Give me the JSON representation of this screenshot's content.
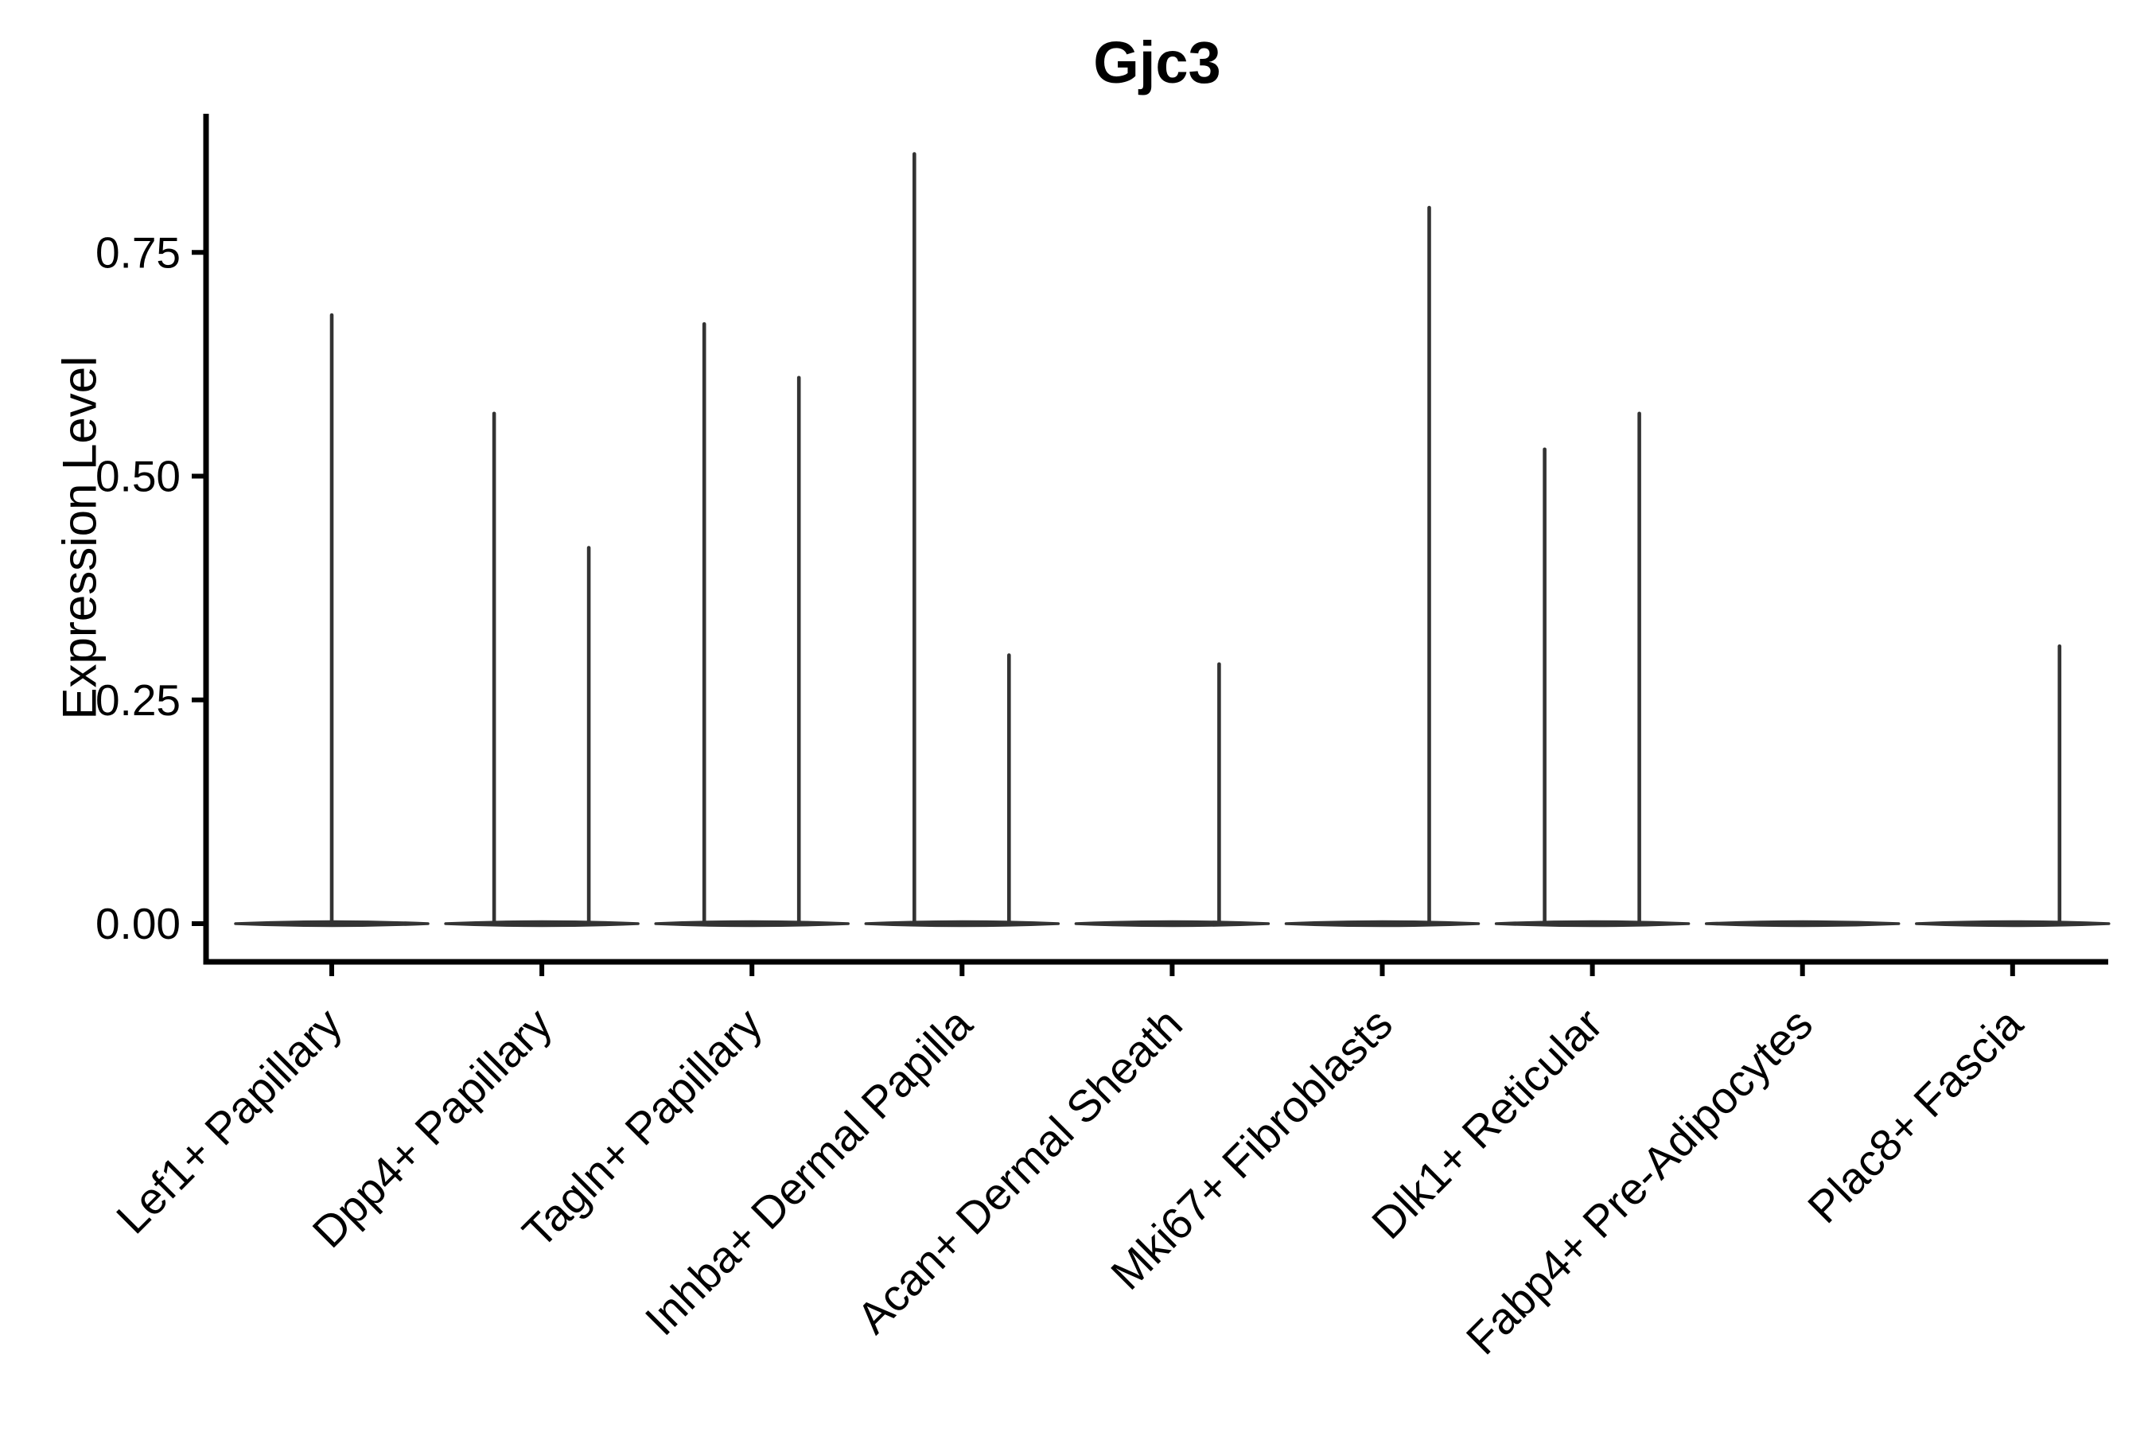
{
  "chart_data": {
    "type": "violin",
    "title": "Gjc3",
    "ylabel": "Expression Level",
    "xlabel": "",
    "ylim": [
      -0.04,
      0.91
    ],
    "yticks": [
      0,
      0.25,
      0.5,
      0.75
    ],
    "ytick_labels": [
      "0.00",
      "0.25",
      "0.50",
      "0.75"
    ],
    "grid": false,
    "legend_position": "none",
    "categories": [
      "Lef1+ Papillary",
      "Dpp4+ Papillary",
      "Tagln+ Papillary",
      "Inhba+ Dermal Papilla",
      "Acan+ Dermal Sheath",
      "Mki67+ Fibroblasts",
      "Dlk1+ Reticular",
      "Fabp4+ Pre-Adipocytes",
      "Plac8+ Fascia"
    ],
    "violins": [
      {
        "category": "Lef1+ Papillary",
        "spikes": [
          {
            "pos": "center",
            "max": 0.68
          }
        ]
      },
      {
        "category": "Dpp4+ Papillary",
        "spikes": [
          {
            "pos": "left",
            "max": 0.57
          },
          {
            "pos": "right",
            "max": 0.42
          }
        ]
      },
      {
        "category": "Tagln+ Papillary",
        "spikes": [
          {
            "pos": "left",
            "max": 0.67
          },
          {
            "pos": "right",
            "max": 0.61
          }
        ]
      },
      {
        "category": "Inhba+ Dermal Papilla",
        "spikes": [
          {
            "pos": "left",
            "max": 0.86
          },
          {
            "pos": "right",
            "max": 0.3
          }
        ]
      },
      {
        "category": "Acan+ Dermal Sheath",
        "spikes": [
          {
            "pos": "right",
            "max": 0.29
          }
        ]
      },
      {
        "category": "Mki67+ Fibroblasts",
        "spikes": [
          {
            "pos": "right",
            "max": 0.8
          }
        ]
      },
      {
        "category": "Dlk1+ Reticular",
        "spikes": [
          {
            "pos": "left",
            "max": 0.53
          },
          {
            "pos": "right",
            "max": 0.57
          }
        ]
      },
      {
        "category": "Fabp4+ Pre-Adipocytes",
        "spikes": []
      },
      {
        "category": "Plac8+ Fascia",
        "spikes": [
          {
            "pos": "right",
            "max": 0.31
          }
        ]
      }
    ],
    "colors": {
      "violin": "#333333",
      "axis": "#000000",
      "text": "#000000",
      "background": "#ffffff"
    }
  }
}
